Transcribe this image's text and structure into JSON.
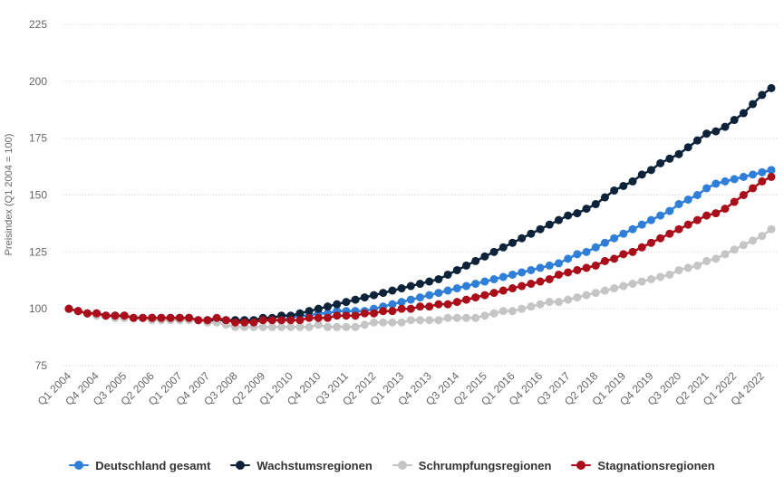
{
  "chart_data": {
    "type": "line",
    "xlabel": "",
    "ylabel": "Preisindex (Q1 2004 = 100)",
    "ylim": [
      75,
      225
    ],
    "yticks": [
      75,
      100,
      125,
      150,
      175,
      200,
      225
    ],
    "grid": true,
    "legend_position": "bottom",
    "x": [
      "Q1 2004",
      "Q2 2004",
      "Q3 2004",
      "Q4 2004",
      "Q1 2005",
      "Q2 2005",
      "Q3 2005",
      "Q4 2005",
      "Q1 2006",
      "Q2 2006",
      "Q3 2006",
      "Q4 2006",
      "Q1 2007",
      "Q2 2007",
      "Q3 2007",
      "Q4 2007",
      "Q1 2008",
      "Q2 2008",
      "Q3 2008",
      "Q4 2008",
      "Q1 2009",
      "Q2 2009",
      "Q3 2009",
      "Q4 2009",
      "Q1 2010",
      "Q2 2010",
      "Q3 2010",
      "Q4 2010",
      "Q1 2011",
      "Q2 2011",
      "Q3 2011",
      "Q4 2011",
      "Q1 2012",
      "Q2 2012",
      "Q3 2012",
      "Q4 2012",
      "Q1 2013",
      "Q2 2013",
      "Q3 2013",
      "Q4 2013",
      "Q1 2014",
      "Q2 2014",
      "Q3 2014",
      "Q4 2014",
      "Q1 2015",
      "Q2 2015",
      "Q3 2015",
      "Q4 2015",
      "Q1 2016",
      "Q2 2016",
      "Q3 2016",
      "Q4 2016",
      "Q1 2017",
      "Q2 2017",
      "Q3 2017",
      "Q4 2017",
      "Q1 2018",
      "Q2 2018",
      "Q3 2018",
      "Q4 2018",
      "Q1 2019",
      "Q2 2019",
      "Q3 2019",
      "Q4 2019",
      "Q1 2020",
      "Q2 2020",
      "Q3 2020",
      "Q4 2020",
      "Q1 2021",
      "Q2 2021",
      "Q3 2021",
      "Q4 2021",
      "Q1 2022",
      "Q2 2022",
      "Q3 2022",
      "Q4 2022",
      "Q1 2023"
    ],
    "xtick_labels": [
      "Q1 2004",
      "Q4 2004",
      "Q3 2005",
      "Q2 2006",
      "Q1 2007",
      "Q4 2007",
      "Q3 2008",
      "Q2 2009",
      "Q1 2010",
      "Q4 2010",
      "Q3 2011",
      "Q2 2012",
      "Q1 2013",
      "Q4 2013",
      "Q3 2014",
      "Q2 2015",
      "Q1 2016",
      "Q4 2016",
      "Q3 2017",
      "Q2 2018",
      "Q1 2019",
      "Q4 2019",
      "Q3 2020",
      "Q2 2021",
      "Q1 2022",
      "Q4 2022"
    ],
    "series": [
      {
        "name": "Deutschland gesamt",
        "color": "#2f7ed8",
        "label_offset": 1,
        "values": [
          100,
          99,
          98,
          98,
          97,
          97,
          97,
          96,
          96,
          96,
          96,
          96,
          96,
          96,
          95,
          95,
          95,
          95,
          95,
          95,
          95,
          95,
          95,
          95,
          96,
          97,
          97,
          98,
          98,
          99,
          99,
          99,
          99,
          100,
          101,
          102,
          103,
          104,
          105,
          106,
          107,
          108,
          109,
          110,
          111,
          112,
          113,
          114,
          115,
          116,
          117,
          118,
          119,
          120,
          122,
          124,
          125,
          127,
          129,
          131,
          133,
          135,
          137,
          139,
          141,
          143,
          146,
          148,
          150,
          153,
          155,
          156,
          157,
          158,
          159,
          160,
          161
        ],
        "labels": [],
        "label_values": []
      },
      {
        "name": "Wachstumsregionen",
        "color": "#0d233a",
        "label_offset": 0,
        "values": [
          100,
          99,
          98,
          98,
          97,
          97,
          97,
          96,
          96,
          96,
          96,
          96,
          96,
          96,
          95,
          95,
          95,
          95,
          95,
          95,
          95,
          96,
          96,
          97,
          97,
          98,
          99,
          100,
          101,
          102,
          103,
          104,
          105,
          106,
          107,
          108,
          109,
          110,
          111,
          112,
          113,
          115,
          117,
          119,
          121,
          123,
          125,
          127,
          129,
          131,
          133,
          135,
          137,
          139,
          141,
          142,
          144,
          146,
          149,
          152,
          154,
          156,
          159,
          161,
          164,
          166,
          168,
          171,
          174,
          177,
          178,
          180,
          183,
          186,
          190,
          194,
          197
        ],
        "labels": [],
        "label_values": []
      },
      {
        "name": "Schrumpfungsregionen",
        "color": "#c5c5c5",
        "label_offset": -1,
        "values": [
          100,
          99,
          98,
          97,
          97,
          96,
          96,
          96,
          96,
          95,
          95,
          95,
          95,
          95,
          95,
          94,
          94,
          93,
          92,
          92,
          92,
          92,
          92,
          92,
          92,
          92,
          92,
          93,
          92,
          92,
          92,
          92,
          93,
          94,
          94,
          94,
          94,
          95,
          95,
          95,
          95,
          96,
          96,
          96,
          96,
          97,
          98,
          99,
          99,
          100,
          101,
          102,
          103,
          103,
          104,
          105,
          106,
          107,
          108,
          109,
          110,
          111,
          112,
          113,
          114,
          115,
          117,
          118,
          119,
          121,
          122,
          124,
          126,
          128,
          130,
          132,
          135
        ],
        "labels": [],
        "label_values": []
      },
      {
        "name": "Stagnationsregionen",
        "color": "#aa0e1a",
        "label_offset": 0,
        "values": [
          100,
          99,
          98,
          98,
          97,
          97,
          97,
          96,
          96,
          96,
          96,
          96,
          96,
          96,
          95,
          95,
          96,
          95,
          94,
          94,
          94,
          95,
          95,
          95,
          95,
          95,
          96,
          96,
          96,
          97,
          97,
          97,
          98,
          98,
          99,
          99,
          100,
          100,
          101,
          101,
          102,
          102,
          103,
          104,
          105,
          106,
          107,
          108,
          109,
          110,
          111,
          112,
          113,
          115,
          116,
          117,
          118,
          119,
          121,
          122,
          124,
          125,
          127,
          129,
          131,
          133,
          135,
          137,
          139,
          141,
          142,
          144,
          147,
          150,
          153,
          156,
          158
        ],
        "labels": [],
        "label_values": []
      }
    ]
  },
  "legend": {
    "items": [
      {
        "label": "Deutschland gesamt",
        "color": "#2f7ed8"
      },
      {
        "label": "Wachstumsregionen",
        "color": "#0d233a"
      },
      {
        "label": "Schrumpfungsregionen",
        "color": "#c5c5c5"
      },
      {
        "label": "Stagnationsregionen",
        "color": "#aa0e1a"
      }
    ]
  }
}
